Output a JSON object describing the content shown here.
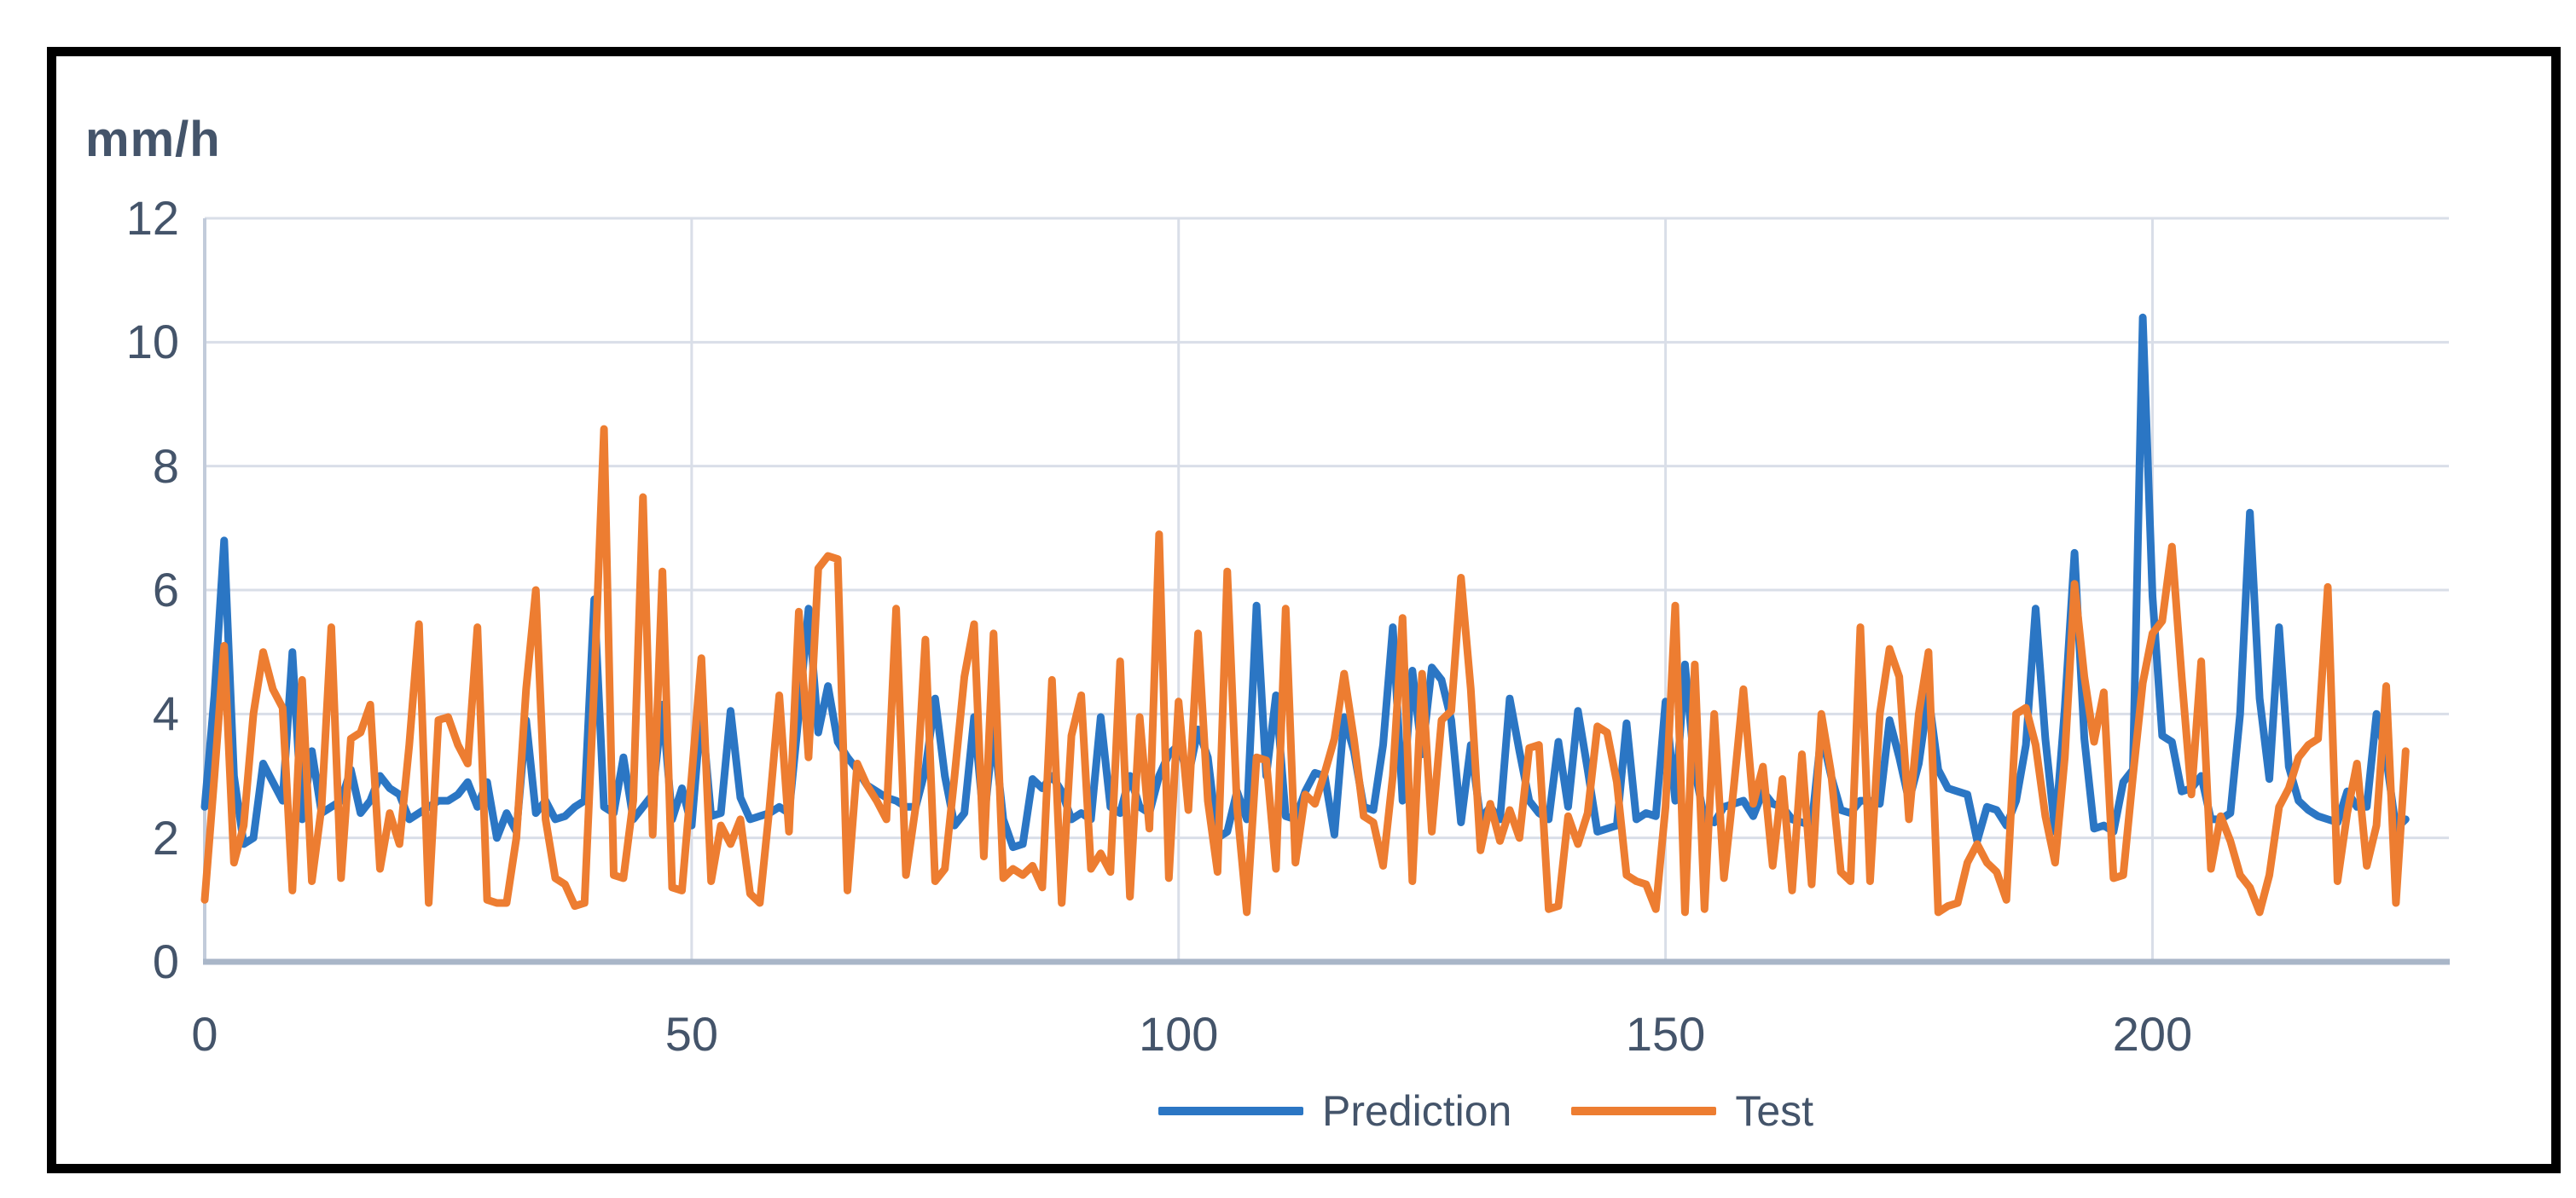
{
  "chart_data": {
    "type": "line",
    "title": "",
    "xlabel": "",
    "ylabel": "mm/h",
    "xlim": [
      0,
      230
    ],
    "ylim": [
      0,
      12
    ],
    "x_ticks": [
      0,
      50,
      100,
      150,
      200
    ],
    "y_ticks": [
      0,
      2,
      4,
      6,
      8,
      10,
      12
    ],
    "grid": true,
    "legend_position": "bottom-center",
    "n_points": 227,
    "series": [
      {
        "name": "Prediction",
        "color": "#2B76C4",
        "values": [
          2.5,
          4.3,
          6.8,
          3.0,
          1.9,
          2.0,
          3.2,
          2.9,
          2.6,
          5.0,
          2.3,
          3.4,
          2.4,
          2.5,
          2.6,
          3.1,
          2.4,
          2.6,
          3.0,
          2.8,
          2.7,
          2.3,
          2.4,
          2.5,
          2.6,
          2.6,
          2.7,
          2.9,
          2.5,
          2.9,
          2.0,
          2.4,
          2.1,
          3.9,
          2.4,
          2.6,
          2.3,
          2.35,
          2.5,
          2.6,
          5.85,
          2.5,
          2.4,
          3.3,
          2.3,
          2.5,
          2.7,
          4.15,
          2.3,
          2.8,
          2.2,
          4.1,
          2.35,
          2.4,
          4.05,
          2.65,
          2.3,
          2.35,
          2.4,
          2.5,
          2.4,
          4.0,
          5.7,
          3.7,
          4.45,
          3.55,
          3.3,
          3.1,
          2.85,
          2.75,
          2.65,
          2.6,
          2.5,
          2.5,
          3.1,
          4.25,
          3.0,
          2.2,
          2.4,
          3.95,
          2.25,
          3.75,
          2.3,
          1.85,
          1.9,
          2.95,
          2.8,
          3.0,
          2.75,
          2.3,
          2.4,
          2.3,
          3.95,
          2.5,
          2.4,
          3.0,
          2.5,
          2.4,
          3.0,
          3.35,
          3.5,
          3.0,
          3.75,
          3.3,
          2.0,
          2.1,
          2.75,
          2.3,
          5.75,
          3.0,
          4.3,
          2.35,
          2.3,
          2.75,
          3.05,
          3.0,
          2.05,
          3.95,
          3.4,
          2.5,
          2.45,
          3.5,
          5.4,
          2.6,
          4.7,
          3.35,
          4.75,
          4.55,
          3.9,
          2.25,
          3.5,
          2.3,
          2.5,
          2.3,
          4.25,
          3.4,
          2.6,
          2.4,
          2.3,
          3.55,
          2.5,
          4.05,
          3.1,
          2.1,
          2.15,
          2.2,
          3.85,
          2.3,
          2.4,
          2.35,
          4.2,
          2.6,
          4.8,
          3.1,
          2.3,
          2.25,
          2.5,
          2.55,
          2.6,
          2.35,
          2.75,
          2.55,
          2.5,
          2.3,
          2.25,
          2.2,
          3.7,
          3.0,
          2.45,
          2.4,
          2.6,
          2.6,
          2.55,
          3.9,
          3.3,
          2.6,
          3.2,
          4.3,
          3.1,
          2.8,
          2.75,
          2.7,
          1.95,
          2.5,
          2.45,
          2.2,
          2.6,
          3.5,
          5.7,
          3.6,
          2.1,
          4.1,
          6.6,
          3.6,
          2.15,
          2.2,
          2.1,
          2.9,
          3.1,
          10.4,
          5.9,
          3.65,
          3.55,
          2.75,
          2.8,
          3.0,
          2.3,
          2.3,
          2.4,
          4.0,
          7.25,
          4.25,
          2.95,
          5.4,
          3.15,
          2.6,
          2.45,
          2.35,
          2.3,
          2.25,
          2.75,
          2.5,
          2.5,
          4.0,
          3.3,
          2.15,
          2.3
        ]
      },
      {
        "name": "Test",
        "color": "#ED7D31",
        "values": [
          1.0,
          3.0,
          5.1,
          1.6,
          2.2,
          4.0,
          5.0,
          4.4,
          4.1,
          1.15,
          4.55,
          1.3,
          2.5,
          5.4,
          1.35,
          3.6,
          3.7,
          4.15,
          1.5,
          2.4,
          1.9,
          3.5,
          5.45,
          0.95,
          3.9,
          3.95,
          3.5,
          3.2,
          5.4,
          1.0,
          0.95,
          0.95,
          2.0,
          4.4,
          6.0,
          2.3,
          1.35,
          1.25,
          0.9,
          0.95,
          4.5,
          8.6,
          1.4,
          1.35,
          2.6,
          7.5,
          2.05,
          6.3,
          1.2,
          1.15,
          3.0,
          4.9,
          1.3,
          2.2,
          1.9,
          2.3,
          1.1,
          0.95,
          2.5,
          4.3,
          2.1,
          5.65,
          3.3,
          6.35,
          6.55,
          6.5,
          1.15,
          3.2,
          2.85,
          2.6,
          2.3,
          5.7,
          1.4,
          2.5,
          5.2,
          1.3,
          1.5,
          3.0,
          4.6,
          5.45,
          1.7,
          5.3,
          1.35,
          1.5,
          1.4,
          1.55,
          1.2,
          4.55,
          0.95,
          3.65,
          4.3,
          1.5,
          1.75,
          1.45,
          4.85,
          1.05,
          3.95,
          2.15,
          6.9,
          1.35,
          4.2,
          2.45,
          5.3,
          2.6,
          1.45,
          6.3,
          2.5,
          0.8,
          3.3,
          3.25,
          1.5,
          5.7,
          1.6,
          2.7,
          2.55,
          3.05,
          3.6,
          4.65,
          3.6,
          2.35,
          2.25,
          1.55,
          3.0,
          5.55,
          1.3,
          4.65,
          2.1,
          3.9,
          4.05,
          6.2,
          4.4,
          1.8,
          2.55,
          1.95,
          2.45,
          2.0,
          3.45,
          3.5,
          0.85,
          0.9,
          2.35,
          1.9,
          2.4,
          3.8,
          3.7,
          2.9,
          1.4,
          1.3,
          1.25,
          0.85,
          2.5,
          5.75,
          0.8,
          4.8,
          0.85,
          4.0,
          1.35,
          2.8,
          4.4,
          2.55,
          3.15,
          1.55,
          2.95,
          1.15,
          3.35,
          1.25,
          4.0,
          3.05,
          1.45,
          1.3,
          5.4,
          1.3,
          4.0,
          5.05,
          4.6,
          2.3,
          4.0,
          5.0,
          0.8,
          0.9,
          0.95,
          1.6,
          1.9,
          1.6,
          1.45,
          1.0,
          4.0,
          4.1,
          3.5,
          2.35,
          1.6,
          3.3,
          6.1,
          4.6,
          3.55,
          4.35,
          1.35,
          1.4,
          3.0,
          4.5,
          5.3,
          5.5,
          6.7,
          4.6,
          2.7,
          4.85,
          1.5,
          2.35,
          1.95,
          1.4,
          1.2,
          0.8,
          1.4,
          2.5,
          2.8,
          3.3,
          3.5,
          3.6,
          6.05,
          1.3,
          2.4,
          3.2,
          1.55,
          2.2,
          4.45,
          0.95,
          3.4
        ]
      }
    ]
  },
  "colors": {
    "text": "#44546A",
    "gridline": "#D9DEE8",
    "y_axis_line": "#C2CBDA",
    "x_axis_line": "#A9B6C8",
    "frame_border": "#000000",
    "background": "#FFFFFF"
  },
  "legend": {
    "items": [
      {
        "label": "Prediction",
        "color": "#2B76C4"
      },
      {
        "label": "Test",
        "color": "#ED7D31"
      }
    ]
  }
}
